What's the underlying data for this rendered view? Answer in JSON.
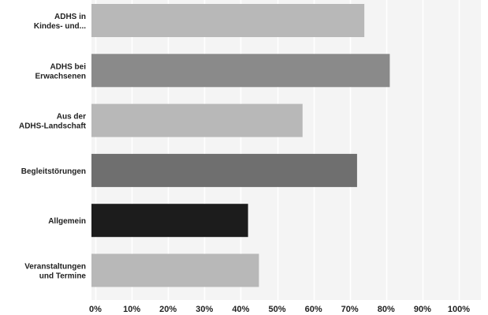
{
  "chart_data": {
    "type": "bar",
    "orientation": "horizontal",
    "title": "",
    "xlabel": "",
    "ylabel": "",
    "categories": [
      "ADHS in\nKindes- und...",
      "ADHS bei\nErwachsenen",
      "Aus der\nADHS-Landschaft",
      "Begleitstörungen",
      "Allgemein",
      "Veranstaltungen\nund Termine"
    ],
    "values": [
      74,
      81,
      57,
      72,
      42,
      45
    ],
    "bar_colors": [
      "#b8b8b8",
      "#8a8a8a",
      "#b8b8b8",
      "#6f6f6f",
      "#1c1c1c",
      "#b8b8b8"
    ],
    "xlim": [
      0,
      100
    ],
    "x_ticks": [
      "0%",
      "10%",
      "20%",
      "30%",
      "40%",
      "50%",
      "60%",
      "70%",
      "80%",
      "90%",
      "100%"
    ],
    "grid": "vertical",
    "legend": "none"
  },
  "colors": {
    "background": "#ffffff",
    "plot_background": "#f4f4f4",
    "gridline": "#ffffff",
    "text": "#222222"
  }
}
